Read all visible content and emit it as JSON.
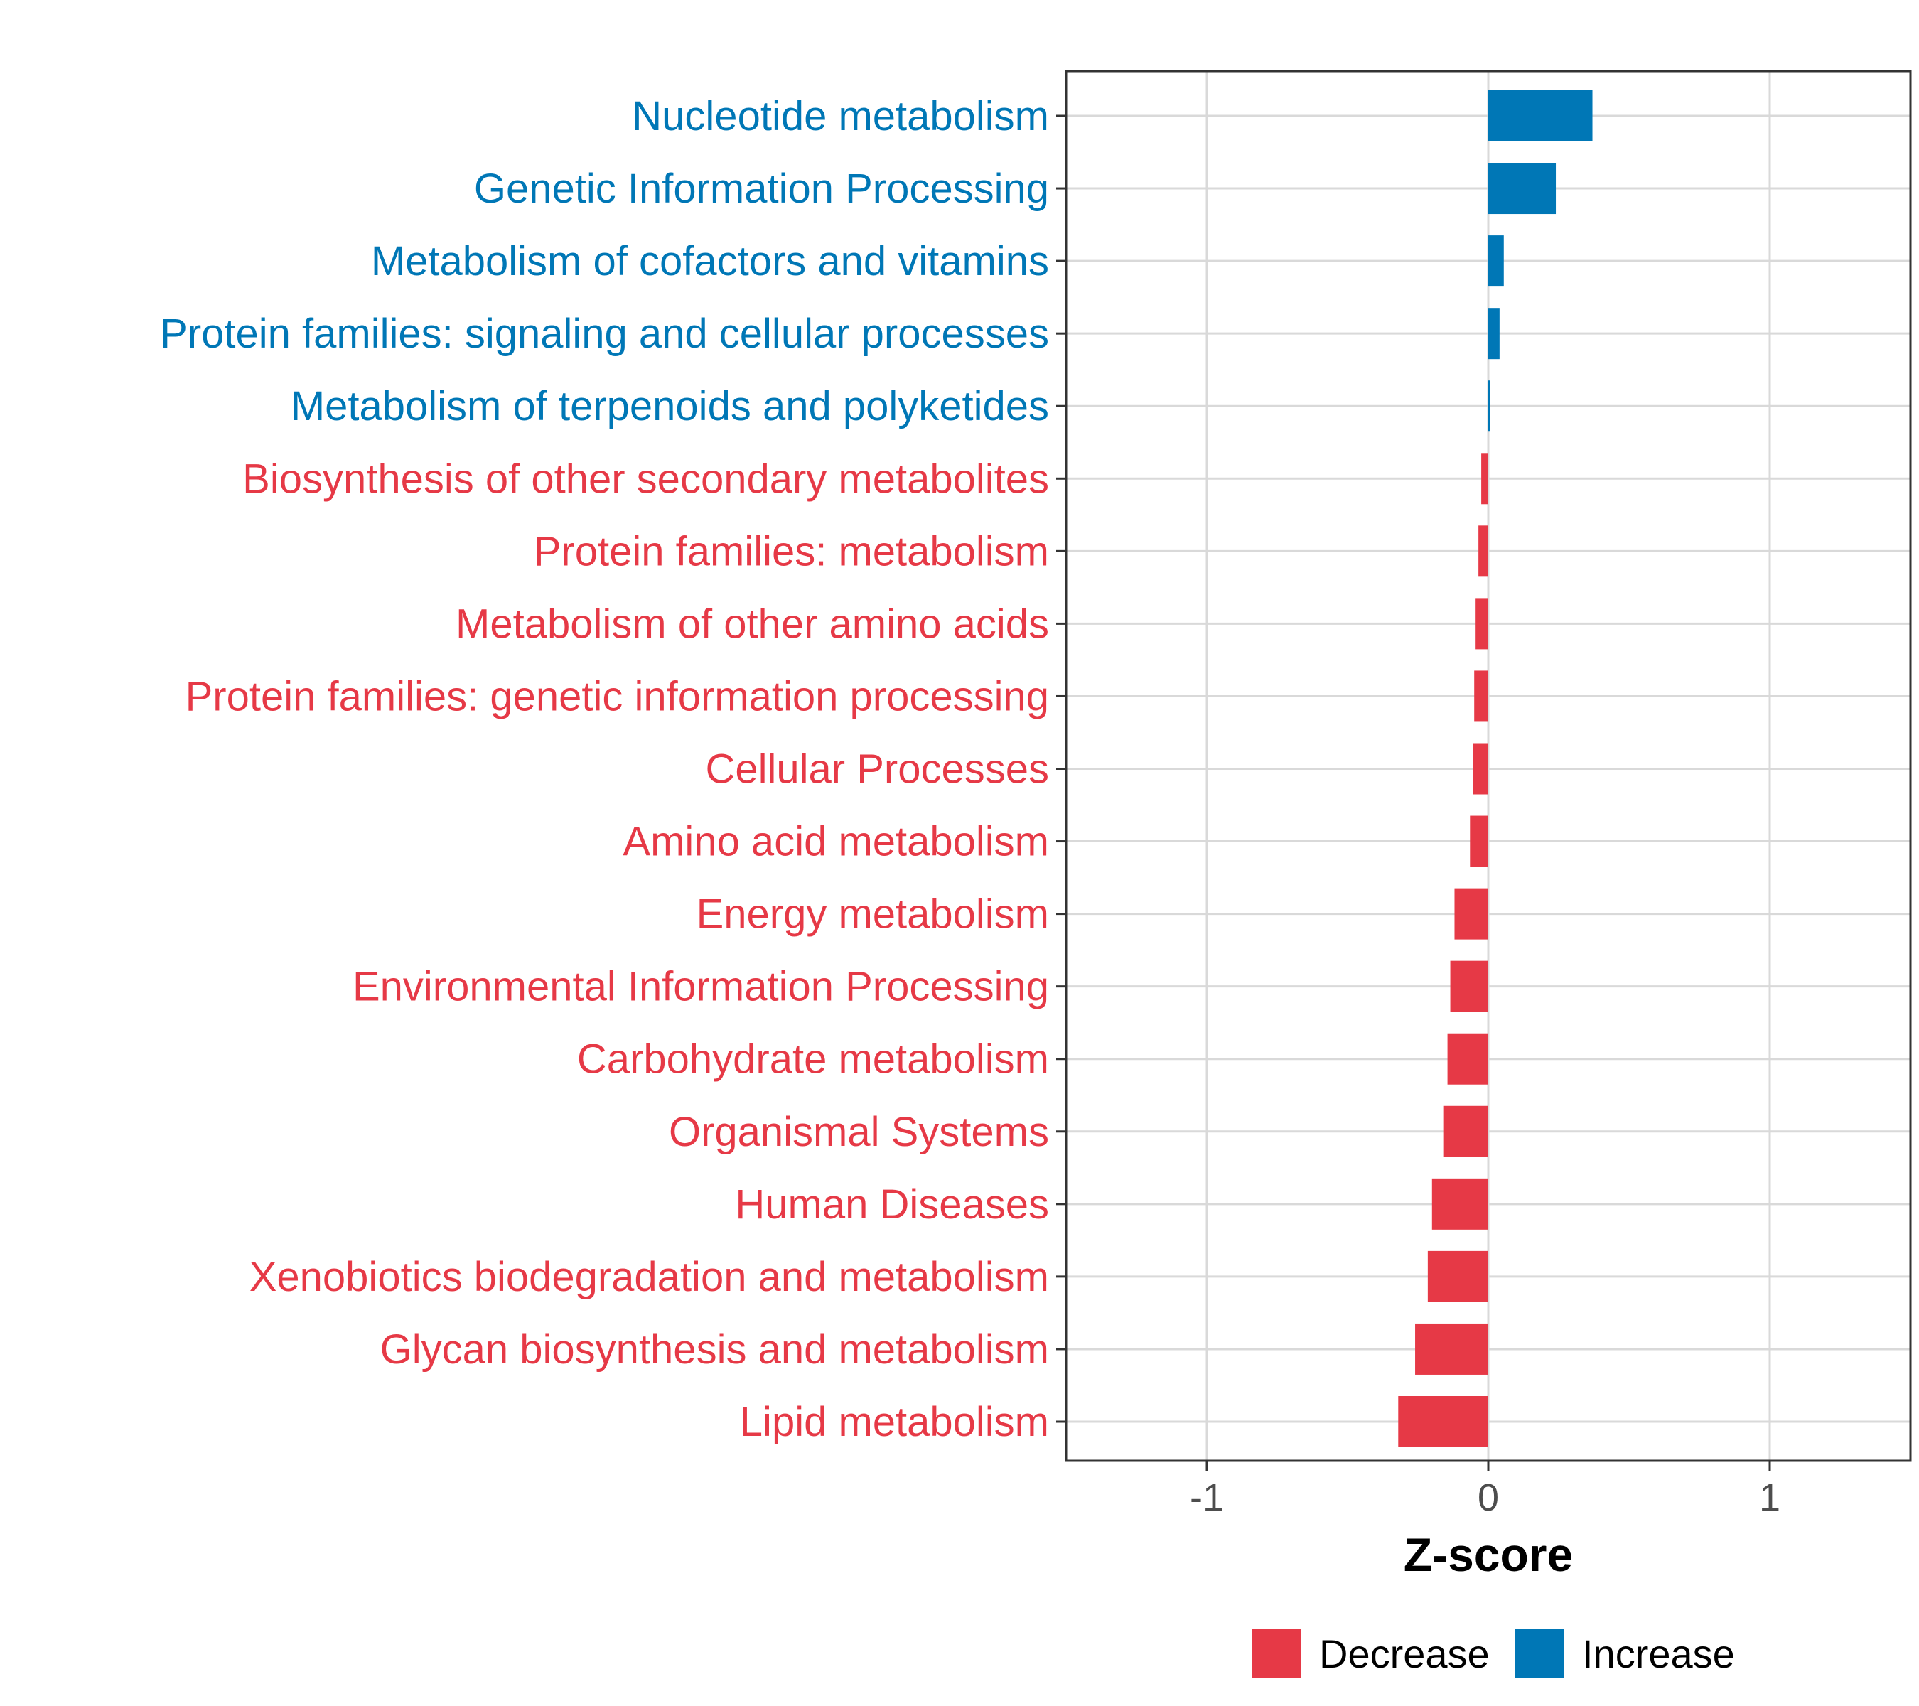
{
  "chart_data": {
    "type": "bar",
    "orientation": "horizontal",
    "title": "",
    "xlabel": "Z-score",
    "ylabel": "",
    "xlim": [
      -1.5,
      1.5
    ],
    "xticks": [
      -1,
      0,
      1
    ],
    "xtick_labels": [
      "-1",
      "0",
      "1"
    ],
    "grid": true,
    "colors": {
      "Decrease": "#e63946",
      "Increase": "#0077b6"
    },
    "categories": [
      "Nucleotide metabolism",
      "Genetic Information Processing",
      "Metabolism of cofactors and vitamins",
      "Protein families: signaling and cellular processes",
      "Metabolism of terpenoids and polyketides",
      "Biosynthesis of other secondary metabolites",
      "Protein families: metabolism",
      "Metabolism of other amino acids",
      "Protein families: genetic information processing",
      "Cellular Processes",
      "Amino acid metabolism",
      "Energy metabolism",
      "Environmental Information Processing",
      "Carbohydrate metabolism",
      "Organismal Systems",
      "Human Diseases",
      "Xenobiotics biodegradation and metabolism",
      "Glycan biosynthesis and metabolism",
      "Lipid metabolism"
    ],
    "values": [
      0.37,
      0.24,
      0.055,
      0.04,
      0.003,
      -0.025,
      -0.035,
      -0.045,
      -0.05,
      -0.055,
      -0.065,
      -0.12,
      -0.135,
      -0.145,
      -0.16,
      -0.2,
      -0.215,
      -0.26,
      -0.32
    ],
    "groups": [
      "Increase",
      "Increase",
      "Increase",
      "Increase",
      "Increase",
      "Decrease",
      "Decrease",
      "Decrease",
      "Decrease",
      "Decrease",
      "Decrease",
      "Decrease",
      "Decrease",
      "Decrease",
      "Decrease",
      "Decrease",
      "Decrease",
      "Decrease",
      "Decrease"
    ],
    "legend": {
      "position": "bottom",
      "items": [
        {
          "label": "Decrease",
          "color": "#e63946"
        },
        {
          "label": "Increase",
          "color": "#0077b6"
        }
      ]
    }
  }
}
